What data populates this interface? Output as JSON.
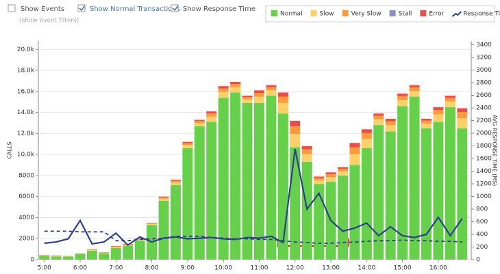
{
  "controls": {
    "show_events": "Show Events",
    "show_normal": "Show Normal Transactions",
    "show_response": "Show Response Time",
    "event_filters": "(show event filters)"
  },
  "chart_data": {
    "type": "bar",
    "stacked": true,
    "grid": true,
    "legend": "top-right",
    "y_label": "CALLS",
    "y2_label": "AVG RESPONSE TIME (MS)",
    "categories": [
      "5:00",
      null,
      null,
      "6:00",
      null,
      null,
      "7:00",
      null,
      null,
      "8:00",
      null,
      null,
      "9:00",
      null,
      null,
      "10:00",
      null,
      null,
      "11:00",
      null,
      null,
      "12:00",
      null,
      null,
      "13:00",
      null,
      null,
      "14:00",
      null,
      null,
      "15:00",
      null,
      null,
      "16:00",
      null,
      null
    ],
    "ylim": [
      0,
      20800
    ],
    "yticks": [
      0,
      2000,
      4000,
      6000,
      8000,
      {
        "value": 10000,
        "label": "10.0k"
      },
      {
        "value": 12000,
        "label": "12.0k"
      },
      {
        "value": 14000,
        "label": "14.0k"
      },
      {
        "value": 16000,
        "label": "16.0k"
      },
      {
        "value": 18000,
        "label": "18.0k"
      },
      {
        "value": 20000,
        "label": "20.0k"
      }
    ],
    "y2lim": [
      0,
      3460
    ],
    "y2ticks": [
      0,
      200,
      400,
      600,
      800,
      1000,
      1200,
      1400,
      1600,
      1800,
      2000,
      2200,
      2400,
      2600,
      2800,
      3000,
      3200,
      3400
    ],
    "series": [
      {
        "name": "Normal",
        "color": "#66d04a",
        "values": [
          350,
          300,
          300,
          550,
          850,
          600,
          1100,
          1300,
          1800,
          3300,
          5600,
          7100,
          10600,
          12700,
          13100,
          15400,
          15900,
          14900,
          14900,
          15600,
          13900,
          10700,
          9300,
          7200,
          7400,
          8000,
          9000,
          10600,
          12800,
          12200,
          14600,
          15500,
          12500,
          13100,
          14500,
          12500
        ]
      },
      {
        "name": "Slow",
        "color": "#ffcf6a",
        "values": [
          50,
          50,
          25,
          25,
          75,
          50,
          100,
          100,
          100,
          100,
          200,
          250,
          300,
          300,
          500,
          550,
          500,
          350,
          600,
          500,
          1000,
          1250,
          750,
          350,
          450,
          400,
          1050,
          900,
          550,
          600,
          600,
          550,
          450,
          700,
          550,
          950
        ]
      },
      {
        "name": "Very Slow",
        "color": "#ff9a3c",
        "values": [
          30,
          30,
          15,
          15,
          45,
          30,
          60,
          60,
          60,
          60,
          120,
          150,
          180,
          180,
          300,
          330,
          300,
          210,
          360,
          300,
          600,
          750,
          450,
          210,
          270,
          240,
          630,
          540,
          330,
          360,
          360,
          330,
          270,
          420,
          330,
          570
        ]
      },
      {
        "name": "Stall",
        "color": "#8c8ccc",
        "values": [
          0,
          0,
          0,
          0,
          0,
          0,
          0,
          0,
          0,
          0,
          0,
          0,
          0,
          0,
          0,
          0,
          0,
          0,
          0,
          0,
          0,
          0,
          0,
          0,
          0,
          0,
          0,
          0,
          0,
          0,
          0,
          0,
          0,
          0,
          0,
          0
        ]
      },
      {
        "name": "Error",
        "color": "#ee4b4b",
        "values": [
          20,
          20,
          10,
          10,
          30,
          20,
          40,
          40,
          40,
          40,
          80,
          100,
          120,
          120,
          200,
          220,
          200,
          140,
          240,
          200,
          400,
          500,
          300,
          140,
          180,
          160,
          420,
          360,
          220,
          240,
          240,
          220,
          180,
          280,
          220,
          380
        ]
      },
      {
        "name": "Response Time",
        "color": "#2e3f8f",
        "axis": "y2",
        "line": true,
        "values": [
          260,
          280,
          330,
          620,
          250,
          280,
          420,
          230,
          360,
          280,
          340,
          360,
          330,
          340,
          350,
          330,
          320,
          350,
          340,
          370,
          270,
          1750,
          800,
          1050,
          620,
          450,
          500,
          580,
          380,
          520,
          380,
          350,
          400,
          670,
          380,
          650
        ]
      },
      {
        "color": "#2e3f8f",
        "axis": "y2",
        "line": true,
        "dashed": true,
        "values": [
          450,
          450,
          450,
          440,
          440,
          440,
          300,
          300,
          320,
          330,
          340,
          370,
          370,
          370,
          350,
          340,
          330,
          330,
          320,
          320,
          300,
          280,
          270,
          260,
          260,
          270,
          280,
          290,
          300,
          300,
          310,
          300,
          300,
          290,
          290,
          280
        ]
      }
    ]
  }
}
